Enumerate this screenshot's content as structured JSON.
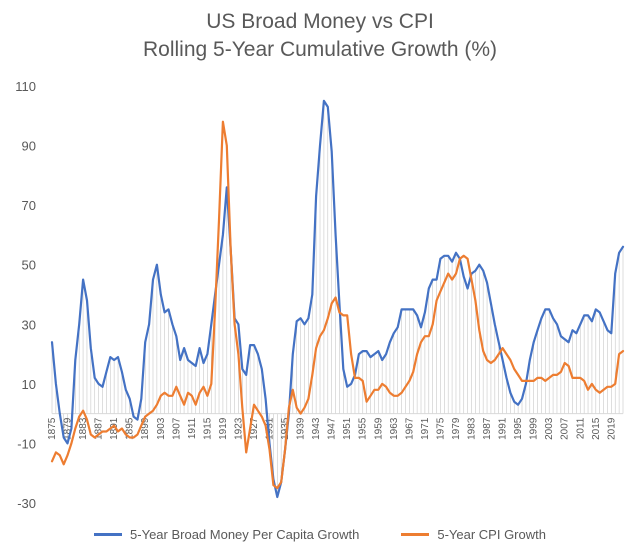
{
  "chart_data": {
    "type": "line",
    "title": "US Broad Money vs CPI",
    "subtitle": "Rolling 5-Year Cumulative Growth (%)",
    "xlabel": "",
    "ylabel": "",
    "ylim": [
      -30,
      110
    ],
    "yticks": [
      -30,
      -10,
      10,
      30,
      50,
      70,
      90,
      110
    ],
    "xlim": [
      1875,
      2022
    ],
    "xticks": [
      1875,
      1879,
      1883,
      1887,
      1891,
      1895,
      1899,
      1903,
      1907,
      1911,
      1915,
      1919,
      1923,
      1927,
      1931,
      1935,
      1939,
      1943,
      1947,
      1951,
      1955,
      1959,
      1963,
      1967,
      1971,
      1975,
      1979,
      1983,
      1987,
      1991,
      1995,
      1999,
      2003,
      2007,
      2011,
      2015,
      2019
    ],
    "grid": false,
    "legend_position": "bottom",
    "series": [
      {
        "name": "5-Year Broad Money Per Capita Growth",
        "color": "#4472C4",
        "points": [
          [
            1875,
            24
          ],
          [
            1876,
            10
          ],
          [
            1877,
            0
          ],
          [
            1878,
            -8
          ],
          [
            1879,
            -10
          ],
          [
            1880,
            -5
          ],
          [
            1881,
            18
          ],
          [
            1882,
            30
          ],
          [
            1883,
            45
          ],
          [
            1884,
            38
          ],
          [
            1885,
            22
          ],
          [
            1886,
            12
          ],
          [
            1887,
            10
          ],
          [
            1888,
            9
          ],
          [
            1889,
            14
          ],
          [
            1890,
            19
          ],
          [
            1891,
            18
          ],
          [
            1892,
            19
          ],
          [
            1893,
            14
          ],
          [
            1894,
            8
          ],
          [
            1895,
            5
          ],
          [
            1896,
            -1
          ],
          [
            1897,
            -2
          ],
          [
            1898,
            5
          ],
          [
            1899,
            24
          ],
          [
            1900,
            30
          ],
          [
            1901,
            45
          ],
          [
            1902,
            50
          ],
          [
            1903,
            40
          ],
          [
            1904,
            34
          ],
          [
            1905,
            35
          ],
          [
            1906,
            30
          ],
          [
            1907,
            26
          ],
          [
            1908,
            18
          ],
          [
            1909,
            22
          ],
          [
            1910,
            18
          ],
          [
            1911,
            17
          ],
          [
            1912,
            16
          ],
          [
            1913,
            22
          ],
          [
            1914,
            17
          ],
          [
            1915,
            20
          ],
          [
            1916,
            30
          ],
          [
            1917,
            40
          ],
          [
            1918,
            50
          ],
          [
            1919,
            60
          ],
          [
            1920,
            76
          ],
          [
            1921,
            55
          ],
          [
            1922,
            32
          ],
          [
            1923,
            30
          ],
          [
            1924,
            15
          ],
          [
            1925,
            13
          ],
          [
            1926,
            23
          ],
          [
            1927,
            23
          ],
          [
            1928,
            20
          ],
          [
            1929,
            15
          ],
          [
            1930,
            5
          ],
          [
            1931,
            -10
          ],
          [
            1932,
            -22
          ],
          [
            1933,
            -28
          ],
          [
            1934,
            -23
          ],
          [
            1935,
            -12
          ],
          [
            1936,
            0
          ],
          [
            1937,
            20
          ],
          [
            1938,
            31
          ],
          [
            1939,
            32
          ],
          [
            1940,
            30
          ],
          [
            1941,
            32
          ],
          [
            1942,
            40
          ],
          [
            1943,
            73
          ],
          [
            1944,
            90
          ],
          [
            1945,
            105
          ],
          [
            1946,
            103
          ],
          [
            1947,
            88
          ],
          [
            1948,
            60
          ],
          [
            1949,
            37
          ],
          [
            1950,
            15
          ],
          [
            1951,
            9
          ],
          [
            1952,
            10
          ],
          [
            1953,
            13
          ],
          [
            1954,
            20
          ],
          [
            1955,
            21
          ],
          [
            1956,
            21
          ],
          [
            1957,
            19
          ],
          [
            1958,
            20
          ],
          [
            1959,
            21
          ],
          [
            1960,
            18
          ],
          [
            1961,
            20
          ],
          [
            1962,
            24
          ],
          [
            1963,
            27
          ],
          [
            1964,
            29
          ],
          [
            1965,
            35
          ],
          [
            1966,
            35
          ],
          [
            1967,
            35
          ],
          [
            1968,
            35
          ],
          [
            1969,
            33
          ],
          [
            1970,
            29
          ],
          [
            1971,
            34
          ],
          [
            1972,
            42
          ],
          [
            1973,
            45
          ],
          [
            1974,
            45
          ],
          [
            1975,
            52
          ],
          [
            1976,
            53
          ],
          [
            1977,
            53
          ],
          [
            1978,
            51
          ],
          [
            1979,
            54
          ],
          [
            1980,
            52
          ],
          [
            1981,
            46
          ],
          [
            1982,
            42
          ],
          [
            1983,
            47
          ],
          [
            1984,
            48
          ],
          [
            1985,
            50
          ],
          [
            1986,
            48
          ],
          [
            1987,
            44
          ],
          [
            1988,
            37
          ],
          [
            1989,
            30
          ],
          [
            1990,
            24
          ],
          [
            1991,
            18
          ],
          [
            1992,
            12
          ],
          [
            1993,
            7
          ],
          [
            1994,
            4
          ],
          [
            1995,
            3
          ],
          [
            1996,
            5
          ],
          [
            1997,
            10
          ],
          [
            1998,
            18
          ],
          [
            1999,
            24
          ],
          [
            2000,
            28
          ],
          [
            2001,
            32
          ],
          [
            2002,
            35
          ],
          [
            2003,
            35
          ],
          [
            2004,
            32
          ],
          [
            2005,
            30
          ],
          [
            2006,
            26
          ],
          [
            2007,
            25
          ],
          [
            2008,
            24
          ],
          [
            2009,
            28
          ],
          [
            2010,
            27
          ],
          [
            2011,
            30
          ],
          [
            2012,
            33
          ],
          [
            2013,
            33
          ],
          [
            2014,
            31
          ],
          [
            2015,
            35
          ],
          [
            2016,
            34
          ],
          [
            2017,
            31
          ],
          [
            2018,
            28
          ],
          [
            2019,
            27
          ],
          [
            2020,
            47
          ],
          [
            2021,
            54
          ],
          [
            2022,
            56
          ]
        ]
      },
      {
        "name": "5-Year CPI Growth",
        "color": "#ED7D31",
        "points": [
          [
            1875,
            -16
          ],
          [
            1876,
            -13
          ],
          [
            1877,
            -14
          ],
          [
            1878,
            -17
          ],
          [
            1879,
            -14
          ],
          [
            1880,
            -10
          ],
          [
            1881,
            -5
          ],
          [
            1882,
            -1
          ],
          [
            1883,
            1
          ],
          [
            1884,
            -2
          ],
          [
            1885,
            -7
          ],
          [
            1886,
            -8
          ],
          [
            1887,
            -7
          ],
          [
            1888,
            -6
          ],
          [
            1889,
            -6
          ],
          [
            1890,
            -5
          ],
          [
            1891,
            -4
          ],
          [
            1892,
            -6
          ],
          [
            1893,
            -5
          ],
          [
            1894,
            -7
          ],
          [
            1895,
            -8
          ],
          [
            1896,
            -8
          ],
          [
            1897,
            -7
          ],
          [
            1898,
            -4
          ],
          [
            1899,
            -1
          ],
          [
            1900,
            0
          ],
          [
            1901,
            1
          ],
          [
            1902,
            3
          ],
          [
            1903,
            6
          ],
          [
            1904,
            7
          ],
          [
            1905,
            6
          ],
          [
            1906,
            6
          ],
          [
            1907,
            9
          ],
          [
            1908,
            6
          ],
          [
            1909,
            3
          ],
          [
            1910,
            7
          ],
          [
            1911,
            6
          ],
          [
            1912,
            3
          ],
          [
            1913,
            7
          ],
          [
            1914,
            9
          ],
          [
            1915,
            6
          ],
          [
            1916,
            10
          ],
          [
            1917,
            35
          ],
          [
            1918,
            65
          ],
          [
            1919,
            98
          ],
          [
            1920,
            90
          ],
          [
            1921,
            55
          ],
          [
            1922,
            30
          ],
          [
            1923,
            20
          ],
          [
            1924,
            2
          ],
          [
            1925,
            -13
          ],
          [
            1926,
            -5
          ],
          [
            1927,
            3
          ],
          [
            1928,
            1
          ],
          [
            1929,
            -1
          ],
          [
            1930,
            -4
          ],
          [
            1931,
            -12
          ],
          [
            1932,
            -24
          ],
          [
            1933,
            -25
          ],
          [
            1934,
            -23
          ],
          [
            1935,
            -12
          ],
          [
            1936,
            2
          ],
          [
            1937,
            8
          ],
          [
            1938,
            2
          ],
          [
            1939,
            0
          ],
          [
            1940,
            2
          ],
          [
            1941,
            5
          ],
          [
            1942,
            13
          ],
          [
            1943,
            22
          ],
          [
            1944,
            26
          ],
          [
            1945,
            28
          ],
          [
            1946,
            32
          ],
          [
            1947,
            37
          ],
          [
            1948,
            39
          ],
          [
            1949,
            34
          ],
          [
            1950,
            33
          ],
          [
            1951,
            33
          ],
          [
            1952,
            20
          ],
          [
            1953,
            12
          ],
          [
            1954,
            12
          ],
          [
            1955,
            11
          ],
          [
            1956,
            4
          ],
          [
            1957,
            6
          ],
          [
            1958,
            8
          ],
          [
            1959,
            8
          ],
          [
            1960,
            10
          ],
          [
            1961,
            9
          ],
          [
            1962,
            7
          ],
          [
            1963,
            6
          ],
          [
            1964,
            6
          ],
          [
            1965,
            7
          ],
          [
            1966,
            9
          ],
          [
            1967,
            11
          ],
          [
            1968,
            14
          ],
          [
            1969,
            20
          ],
          [
            1970,
            24
          ],
          [
            1971,
            26
          ],
          [
            1972,
            26
          ],
          [
            1973,
            30
          ],
          [
            1974,
            38
          ],
          [
            1975,
            41
          ],
          [
            1976,
            44
          ],
          [
            1977,
            47
          ],
          [
            1978,
            45
          ],
          [
            1979,
            47
          ],
          [
            1980,
            52
          ],
          [
            1981,
            53
          ],
          [
            1982,
            52
          ],
          [
            1983,
            45
          ],
          [
            1984,
            38
          ],
          [
            1985,
            28
          ],
          [
            1986,
            21
          ],
          [
            1987,
            18
          ],
          [
            1988,
            17
          ],
          [
            1989,
            18
          ],
          [
            1990,
            20
          ],
          [
            1991,
            22
          ],
          [
            1992,
            20
          ],
          [
            1993,
            18
          ],
          [
            1994,
            15
          ],
          [
            1995,
            13
          ],
          [
            1996,
            11
          ],
          [
            1997,
            11
          ],
          [
            1998,
            11
          ],
          [
            1999,
            11
          ],
          [
            2000,
            12
          ],
          [
            2001,
            12
          ],
          [
            2002,
            11
          ],
          [
            2003,
            12
          ],
          [
            2004,
            13
          ],
          [
            2005,
            13
          ],
          [
            2006,
            14
          ],
          [
            2007,
            17
          ],
          [
            2008,
            16
          ],
          [
            2009,
            12
          ],
          [
            2010,
            12
          ],
          [
            2011,
            12
          ],
          [
            2012,
            11
          ],
          [
            2013,
            8
          ],
          [
            2014,
            10
          ],
          [
            2015,
            8
          ],
          [
            2016,
            7
          ],
          [
            2017,
            8
          ],
          [
            2018,
            9
          ],
          [
            2019,
            9
          ],
          [
            2020,
            10
          ],
          [
            2021,
            20
          ],
          [
            2022,
            21
          ]
        ]
      }
    ]
  }
}
